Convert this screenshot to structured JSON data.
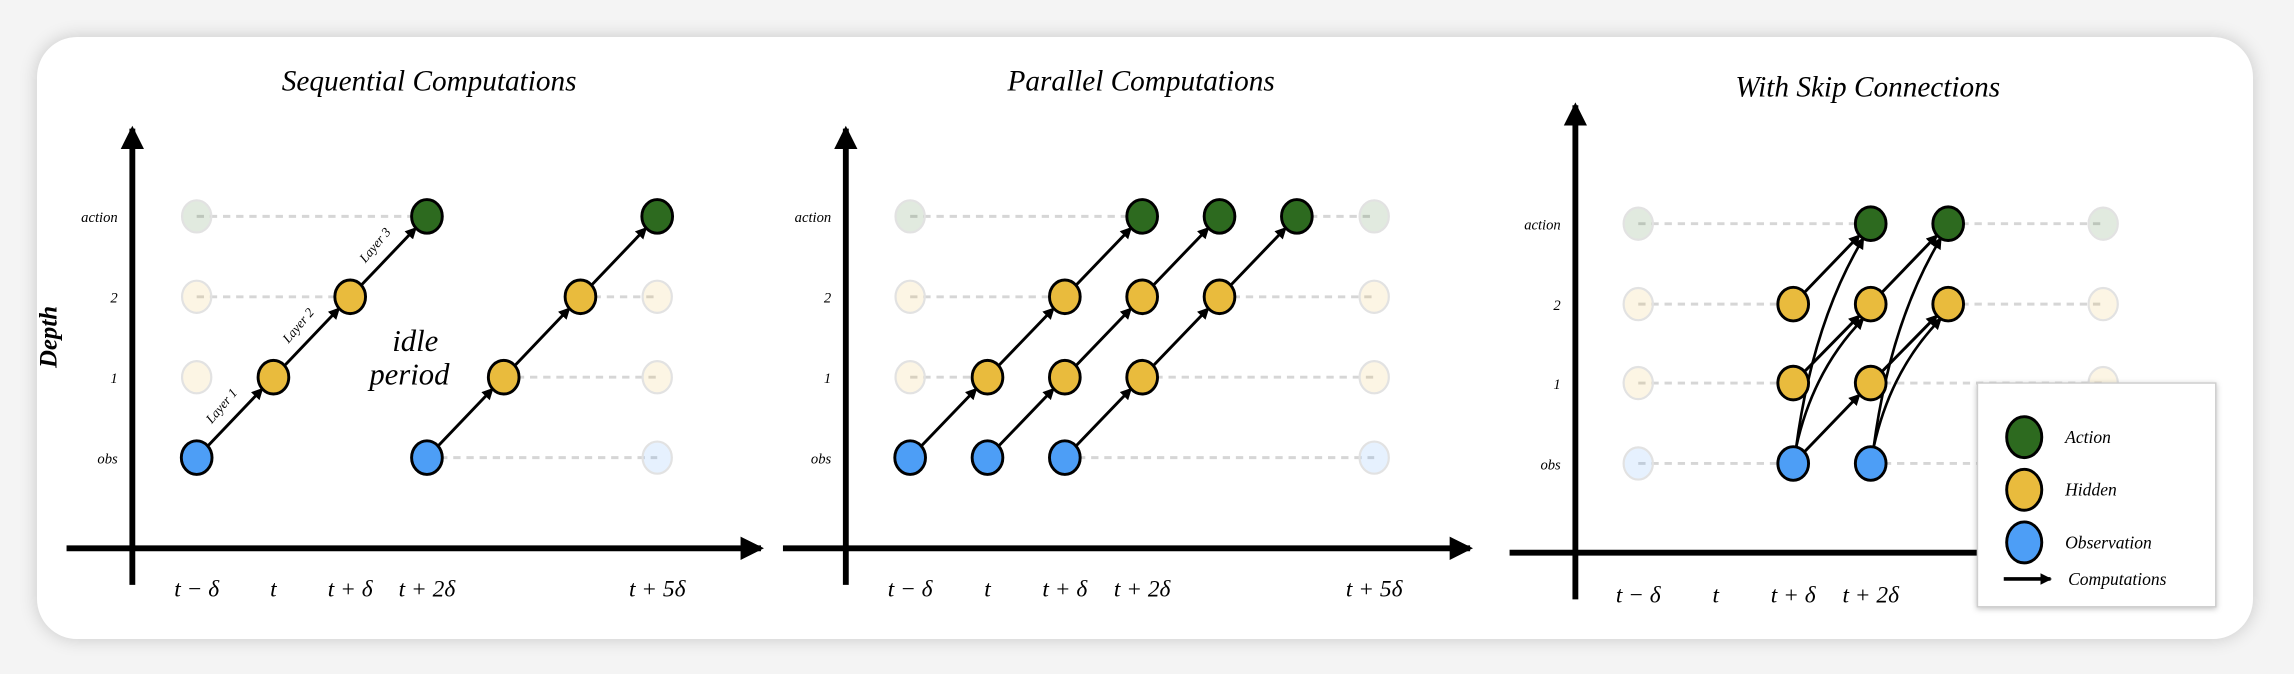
{
  "colors": {
    "action": "#2d6a1f",
    "hidden": "#e9bb3d",
    "obs": "#4d9ef6",
    "dash": "#d6d6d6"
  },
  "panels": [
    {
      "title": "Sequential Computations",
      "depth_label": "Depth",
      "row_labels": [
        "obs",
        "1",
        "2",
        "action"
      ],
      "tick_labels": [
        {
          "t": -1,
          "label": "t − δ"
        },
        {
          "t": 0,
          "label": "t"
        },
        {
          "t": 1,
          "label": "t + δ"
        },
        {
          "t": 2,
          "label": "t + 2δ"
        },
        {
          "t": 5,
          "label": "t + 5δ"
        }
      ],
      "layer_labels": [
        "Layer 1",
        "Layer 2",
        "Layer 3"
      ],
      "annotation": [
        "idle",
        "period"
      ],
      "faded": [
        [
          -1,
          1
        ],
        [
          -1,
          2
        ],
        [
          -1,
          3
        ],
        [
          5,
          0
        ],
        [
          5,
          1
        ],
        [
          5,
          2
        ],
        [
          5,
          3
        ]
      ],
      "active": [
        [
          -1,
          0
        ],
        [
          0,
          1
        ],
        [
          1,
          2
        ],
        [
          2,
          3
        ],
        [
          2,
          0
        ],
        [
          3,
          1
        ],
        [
          4,
          2
        ],
        [
          5,
          3
        ]
      ],
      "dashes": [
        [
          -1,
          2,
          3
        ],
        [
          -1,
          1,
          2
        ],
        [
          4,
          5,
          2
        ],
        [
          3,
          5,
          1
        ],
        [
          2,
          5,
          0
        ]
      ],
      "arrows": [
        [
          -1,
          0,
          0,
          1
        ],
        [
          0,
          1,
          1,
          2
        ],
        [
          1,
          2,
          2,
          3
        ],
        [
          2,
          0,
          3,
          1
        ],
        [
          3,
          1,
          4,
          2
        ],
        [
          4,
          2,
          5,
          3
        ]
      ],
      "curves": []
    },
    {
      "title": "Parallel Computations",
      "row_labels": [
        "obs",
        "1",
        "2",
        "action"
      ],
      "tick_labels": [
        {
          "t": -1,
          "label": "t − δ"
        },
        {
          "t": 0,
          "label": "t"
        },
        {
          "t": 1,
          "label": "t + δ"
        },
        {
          "t": 2,
          "label": "t + 2δ"
        },
        {
          "t": 5,
          "label": "t + 5δ"
        }
      ],
      "faded": [
        [
          -1,
          1
        ],
        [
          -1,
          2
        ],
        [
          -1,
          3
        ],
        [
          5,
          0
        ],
        [
          5,
          1
        ],
        [
          5,
          2
        ],
        [
          5,
          3
        ]
      ],
      "active": [
        [
          -1,
          0
        ],
        [
          0,
          0
        ],
        [
          1,
          0
        ],
        [
          0,
          1
        ],
        [
          1,
          1
        ],
        [
          2,
          1
        ],
        [
          1,
          2
        ],
        [
          2,
          2
        ],
        [
          3,
          2
        ],
        [
          2,
          3
        ],
        [
          3,
          3
        ],
        [
          4,
          3
        ]
      ],
      "dashes": [
        [
          -1,
          2,
          3
        ],
        [
          4,
          5,
          3
        ],
        [
          -1,
          1,
          2
        ],
        [
          3,
          5,
          2
        ],
        [
          -1,
          0,
          1
        ],
        [
          2,
          5,
          1
        ],
        [
          1,
          5,
          0
        ]
      ],
      "arrows": [
        [
          -1,
          0,
          0,
          1
        ],
        [
          0,
          1,
          1,
          2
        ],
        [
          1,
          2,
          2,
          3
        ],
        [
          0,
          0,
          1,
          1
        ],
        [
          1,
          1,
          2,
          2
        ],
        [
          2,
          2,
          3,
          3
        ],
        [
          1,
          0,
          2,
          1
        ],
        [
          2,
          1,
          3,
          2
        ],
        [
          3,
          2,
          4,
          3
        ]
      ],
      "curves": []
    },
    {
      "title": "With Skip Connections",
      "row_labels": [
        "obs",
        "1",
        "2",
        "action"
      ],
      "tick_labels": [
        {
          "t": -1,
          "label": "t − δ"
        },
        {
          "t": 0,
          "label": "t"
        },
        {
          "t": 1,
          "label": "t + δ"
        },
        {
          "t": 2,
          "label": "t + 2δ"
        }
      ],
      "faded": [
        [
          -1,
          0
        ],
        [
          -1,
          1
        ],
        [
          -1,
          2
        ],
        [
          -1,
          3
        ],
        [
          5,
          1
        ],
        [
          5,
          2
        ],
        [
          5,
          3
        ]
      ],
      "active": [
        [
          1,
          0
        ],
        [
          2,
          0
        ],
        [
          1,
          1
        ],
        [
          2,
          1
        ],
        [
          1,
          2
        ],
        [
          2,
          2
        ],
        [
          3,
          2
        ],
        [
          2,
          3
        ],
        [
          3,
          3
        ]
      ],
      "dashes": [
        [
          -1,
          1,
          0
        ],
        [
          -1,
          1,
          1
        ],
        [
          -1,
          1,
          2
        ],
        [
          -1,
          2,
          3
        ],
        [
          3,
          5,
          3
        ],
        [
          3,
          5,
          2
        ],
        [
          2,
          5,
          1
        ],
        [
          2,
          5,
          0
        ]
      ],
      "arrows": [
        [
          1,
          0,
          2,
          1
        ],
        [
          1,
          1,
          2,
          2
        ],
        [
          1,
          2,
          2,
          3
        ],
        [
          2,
          1,
          3,
          2
        ],
        [
          2,
          2,
          3,
          3
        ]
      ],
      "curves": [
        [
          1,
          0,
          2,
          2
        ],
        [
          1,
          0,
          2,
          3
        ],
        [
          2,
          0,
          3,
          2
        ],
        [
          2,
          0,
          3,
          3
        ]
      ]
    }
  ],
  "legend": {
    "items": [
      {
        "kind": "action",
        "label": "Action"
      },
      {
        "kind": "hidden",
        "label": "Hidden"
      },
      {
        "kind": "obs",
        "label": "Observation"
      }
    ],
    "arrow_label": "Computations"
  }
}
